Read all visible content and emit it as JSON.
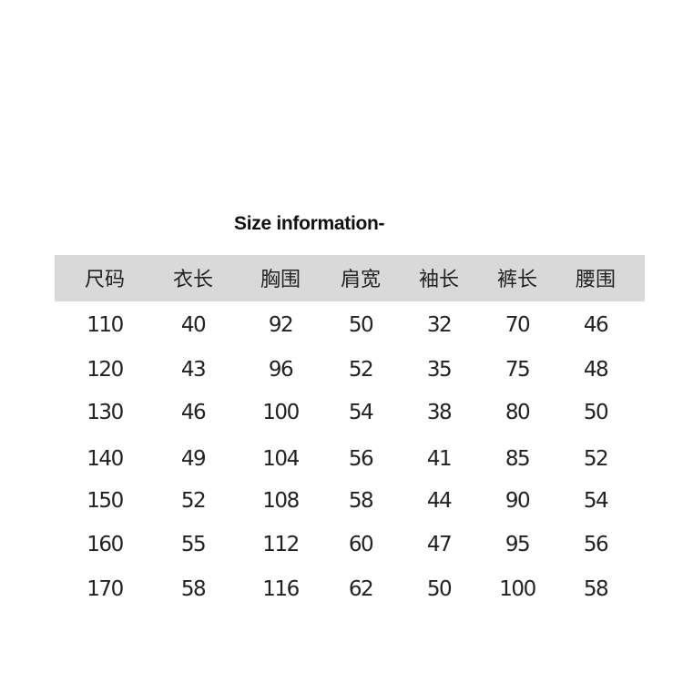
{
  "title": "Size information-",
  "table": {
    "headers": [
      "尺码",
      "衣长",
      "胸围",
      "肩宽",
      "袖长",
      "裤长",
      "腰围"
    ],
    "rows": [
      [
        "110",
        "40",
        "92",
        "50",
        "32",
        "70",
        "46"
      ],
      [
        "120",
        "43",
        "96",
        "52",
        "35",
        "75",
        "48"
      ],
      [
        "130",
        "46",
        "100",
        "54",
        "38",
        "80",
        "50"
      ],
      [
        "140",
        "49",
        "104",
        "56",
        "41",
        "85",
        "52"
      ],
      [
        "150",
        "52",
        "108",
        "58",
        "44",
        "90",
        "54"
      ],
      [
        "160",
        "55",
        "112",
        "60",
        "47",
        "95",
        "56"
      ],
      [
        "170",
        "58",
        "116",
        "62",
        "50",
        "100",
        "58"
      ]
    ]
  },
  "colors": {
    "header_bg": "#d9d9d9",
    "text": "#222222"
  }
}
